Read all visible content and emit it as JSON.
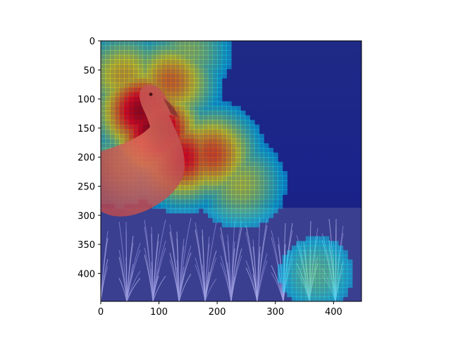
{
  "chart_data": {
    "type": "heatmap",
    "title": "",
    "xlabel": "",
    "ylabel": "",
    "xlim": [
      0,
      448
    ],
    "ylim": [
      448,
      0
    ],
    "x_ticks": [
      0,
      100,
      200,
      300,
      400
    ],
    "y_ticks": [
      0,
      50,
      100,
      150,
      200,
      250,
      300,
      350,
      400
    ],
    "x_tick_labels": [
      "0",
      "100",
      "200",
      "300",
      "400"
    ],
    "y_tick_labels": [
      "0",
      "50",
      "100",
      "150",
      "200",
      "250",
      "300",
      "350",
      "400"
    ],
    "colormap": "jet",
    "grid": false,
    "legend": "none",
    "background_image": "bird perched in tall grass under a blue-tinted overlay",
    "hotspots": [
      {
        "x": 95,
        "y": 155,
        "intensity": 1.0
      },
      {
        "x": 70,
        "y": 120,
        "intensity": 0.95
      },
      {
        "x": 140,
        "y": 200,
        "intensity": 0.85
      },
      {
        "x": 190,
        "y": 195,
        "intensity": 0.75
      },
      {
        "x": 120,
        "y": 70,
        "intensity": 0.7
      },
      {
        "x": 40,
        "y": 60,
        "intensity": 0.6
      },
      {
        "x": 240,
        "y": 245,
        "intensity": 0.5
      },
      {
        "x": 30,
        "y": 210,
        "intensity": 0.45
      },
      {
        "x": 150,
        "y": 20,
        "intensity": 0.45
      },
      {
        "x": 370,
        "y": 400,
        "intensity": 0.35
      }
    ]
  }
}
